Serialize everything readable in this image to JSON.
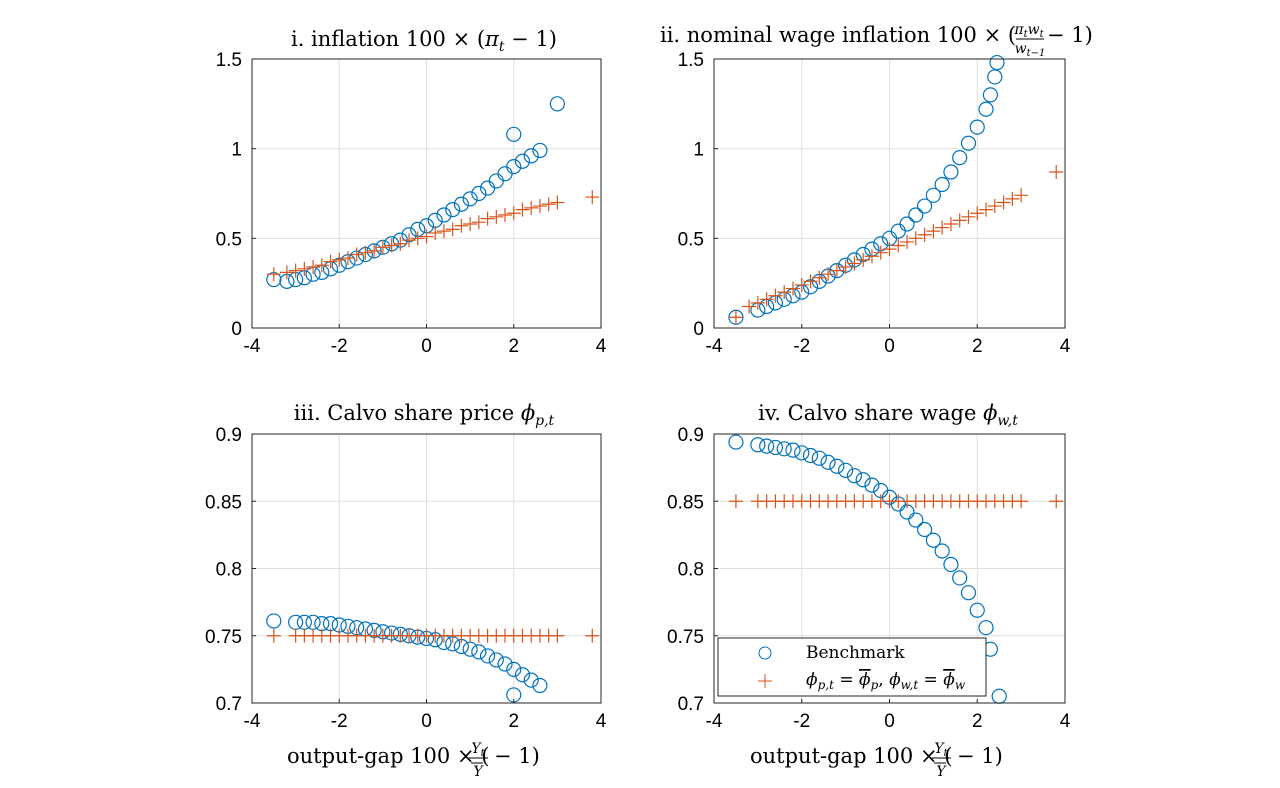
{
  "chart_data": [
    {
      "type": "scatter",
      "title": "i. inflation 100 × (π_t − 1)",
      "xlabel": "",
      "ylabel": "",
      "xlim": [
        -4,
        4
      ],
      "ylim": [
        0,
        1.5
      ],
      "xticks": [
        "-4",
        "-2",
        "0",
        "2",
        "4"
      ],
      "yticks": [
        "0",
        "0.5",
        "1",
        "1.5"
      ],
      "grid": true,
      "series": [
        {
          "name": "Benchmark",
          "marker": "circle",
          "color": "#0072BD",
          "x": [
            -3.5,
            -3.2,
            -3.0,
            -2.8,
            -2.6,
            -2.4,
            -2.2,
            -2.0,
            -1.8,
            -1.6,
            -1.4,
            -1.2,
            -1.0,
            -0.8,
            -0.6,
            -0.4,
            -0.2,
            0.0,
            0.2,
            0.4,
            0.6,
            0.8,
            1.0,
            1.2,
            1.4,
            1.6,
            1.8,
            2.0,
            2.2,
            2.4,
            2.6,
            2.0,
            3.0
          ],
          "y": [
            0.27,
            0.26,
            0.27,
            0.28,
            0.3,
            0.31,
            0.33,
            0.35,
            0.37,
            0.39,
            0.41,
            0.43,
            0.45,
            0.47,
            0.49,
            0.52,
            0.55,
            0.57,
            0.6,
            0.63,
            0.66,
            0.69,
            0.72,
            0.75,
            0.78,
            0.82,
            0.86,
            0.9,
            0.93,
            0.96,
            0.99,
            1.08,
            1.25
          ]
        },
        {
          "name": "φp,t = φ̄p, φw,t = φ̄w",
          "marker": "plus",
          "color": "#D95319",
          "x": [
            -3.5,
            -3.2,
            -3.0,
            -2.8,
            -2.6,
            -2.4,
            -2.2,
            -2.0,
            -1.8,
            -1.6,
            -1.4,
            -1.2,
            -1.0,
            -0.8,
            -0.6,
            -0.4,
            -0.2,
            0.0,
            0.2,
            0.4,
            0.6,
            0.8,
            1.0,
            1.2,
            1.4,
            1.6,
            1.8,
            2.0,
            2.2,
            2.4,
            2.6,
            2.8,
            3.0,
            3.8
          ],
          "y": [
            0.3,
            0.31,
            0.32,
            0.33,
            0.34,
            0.35,
            0.37,
            0.38,
            0.39,
            0.41,
            0.42,
            0.43,
            0.45,
            0.46,
            0.47,
            0.49,
            0.5,
            0.51,
            0.53,
            0.54,
            0.55,
            0.57,
            0.58,
            0.59,
            0.61,
            0.62,
            0.63,
            0.64,
            0.66,
            0.67,
            0.68,
            0.69,
            0.7,
            0.73
          ]
        }
      ]
    },
    {
      "type": "scatter",
      "title": "ii. nominal wage inflation 100 × (π_t w_t / w_{t−1} − 1)",
      "xlabel": "",
      "ylabel": "",
      "xlim": [
        -4,
        4
      ],
      "ylim": [
        0,
        1.5
      ],
      "xticks": [
        "-4",
        "-2",
        "0",
        "2",
        "4"
      ],
      "yticks": [
        "0",
        "0.5",
        "1",
        "1.5"
      ],
      "grid": true,
      "series": [
        {
          "name": "Benchmark",
          "marker": "circle",
          "color": "#0072BD",
          "x": [
            -3.5,
            -3.0,
            -2.8,
            -2.6,
            -2.4,
            -2.2,
            -2.0,
            -1.8,
            -1.6,
            -1.4,
            -1.2,
            -1.0,
            -0.8,
            -0.6,
            -0.4,
            -0.2,
            0.0,
            0.2,
            0.4,
            0.6,
            0.8,
            1.0,
            1.2,
            1.4,
            1.6,
            1.8,
            2.0,
            2.2,
            2.3,
            2.4,
            2.45
          ],
          "y": [
            0.06,
            0.1,
            0.12,
            0.14,
            0.16,
            0.18,
            0.2,
            0.23,
            0.26,
            0.29,
            0.32,
            0.35,
            0.38,
            0.41,
            0.44,
            0.47,
            0.5,
            0.54,
            0.58,
            0.63,
            0.68,
            0.74,
            0.8,
            0.87,
            0.95,
            1.03,
            1.12,
            1.22,
            1.3,
            1.4,
            1.48
          ]
        },
        {
          "name": "φp,t = φ̄p, φw,t = φ̄w",
          "marker": "plus",
          "color": "#D95319",
          "x": [
            -3.5,
            -3.2,
            -3.0,
            -2.8,
            -2.6,
            -2.4,
            -2.2,
            -2.0,
            -1.8,
            -1.6,
            -1.4,
            -1.2,
            -1.0,
            -0.8,
            -0.6,
            -0.4,
            -0.2,
            0.0,
            0.2,
            0.4,
            0.6,
            0.8,
            1.0,
            1.2,
            1.4,
            1.6,
            1.8,
            2.0,
            2.2,
            2.4,
            2.6,
            2.8,
            3.0,
            3.8
          ],
          "y": [
            0.06,
            0.12,
            0.14,
            0.16,
            0.18,
            0.2,
            0.22,
            0.24,
            0.26,
            0.28,
            0.3,
            0.32,
            0.34,
            0.36,
            0.38,
            0.4,
            0.42,
            0.44,
            0.46,
            0.48,
            0.5,
            0.52,
            0.54,
            0.56,
            0.58,
            0.6,
            0.62,
            0.64,
            0.66,
            0.68,
            0.7,
            0.72,
            0.74,
            0.87
          ]
        }
      ]
    },
    {
      "type": "scatter",
      "title": "iii. Calvo share price φ_{p,t}",
      "xlabel": "output-gap 100 × (Y_t / Ȳ − 1)",
      "ylabel": "",
      "xlim": [
        -4,
        4
      ],
      "ylim": [
        0.7,
        0.9
      ],
      "xticks": [
        "-4",
        "-2",
        "0",
        "2",
        "4"
      ],
      "yticks": [
        "0.7",
        "0.75",
        "0.8",
        "0.85",
        "0.9"
      ],
      "grid": true,
      "series": [
        {
          "name": "Benchmark",
          "marker": "circle",
          "color": "#0072BD",
          "x": [
            -3.5,
            -3.0,
            -2.8,
            -2.6,
            -2.4,
            -2.2,
            -2.0,
            -1.8,
            -1.6,
            -1.4,
            -1.2,
            -1.0,
            -0.8,
            -0.6,
            -0.4,
            -0.2,
            0.0,
            0.2,
            0.4,
            0.6,
            0.8,
            1.0,
            1.2,
            1.4,
            1.6,
            1.8,
            2.0,
            2.2,
            2.4,
            2.6,
            2.0
          ],
          "y": [
            0.761,
            0.76,
            0.76,
            0.76,
            0.759,
            0.759,
            0.758,
            0.757,
            0.756,
            0.755,
            0.754,
            0.753,
            0.752,
            0.751,
            0.75,
            0.749,
            0.748,
            0.747,
            0.745,
            0.744,
            0.742,
            0.74,
            0.738,
            0.735,
            0.732,
            0.729,
            0.725,
            0.721,
            0.717,
            0.713,
            0.706
          ]
        },
        {
          "name": "φp,t = φ̄p, φw,t = φ̄w",
          "marker": "plus",
          "color": "#D95319",
          "x": [
            -3.5,
            -3.0,
            -2.8,
            -2.6,
            -2.4,
            -2.2,
            -2.0,
            -1.8,
            -1.6,
            -1.4,
            -1.2,
            -1.0,
            -0.8,
            -0.6,
            -0.4,
            -0.2,
            0.0,
            0.2,
            0.4,
            0.6,
            0.8,
            1.0,
            1.2,
            1.4,
            1.6,
            1.8,
            2.0,
            2.2,
            2.4,
            2.6,
            2.8,
            3.0,
            3.8
          ],
          "y": [
            0.75,
            0.75,
            0.75,
            0.75,
            0.75,
            0.75,
            0.75,
            0.75,
            0.75,
            0.75,
            0.75,
            0.75,
            0.75,
            0.75,
            0.75,
            0.75,
            0.75,
            0.75,
            0.75,
            0.75,
            0.75,
            0.75,
            0.75,
            0.75,
            0.75,
            0.75,
            0.75,
            0.75,
            0.75,
            0.75,
            0.75,
            0.75,
            0.75
          ]
        }
      ]
    },
    {
      "type": "scatter",
      "title": "iv. Calvo share wage φ_{w,t}",
      "xlabel": "output-gap 100 × (Y_t / Ȳ − 1)",
      "ylabel": "",
      "xlim": [
        -4,
        4
      ],
      "ylim": [
        0.7,
        0.9
      ],
      "xticks": [
        "-4",
        "-2",
        "0",
        "2",
        "4"
      ],
      "yticks": [
        "0.7",
        "0.75",
        "0.8",
        "0.85",
        "0.9"
      ],
      "grid": true,
      "legend": {
        "position": "bottom-left",
        "entries": [
          "Benchmark",
          "φp,t = φ̄p, φw,t = φ̄w"
        ]
      },
      "series": [
        {
          "name": "Benchmark",
          "marker": "circle",
          "color": "#0072BD",
          "x": [
            -3.5,
            -3.0,
            -2.8,
            -2.6,
            -2.4,
            -2.2,
            -2.0,
            -1.8,
            -1.6,
            -1.4,
            -1.2,
            -1.0,
            -0.8,
            -0.6,
            -0.4,
            -0.2,
            0.0,
            0.2,
            0.4,
            0.6,
            0.8,
            1.0,
            1.2,
            1.4,
            1.6,
            1.8,
            2.0,
            2.2,
            2.3,
            2.5
          ],
          "y": [
            0.894,
            0.892,
            0.891,
            0.89,
            0.889,
            0.888,
            0.886,
            0.884,
            0.882,
            0.879,
            0.876,
            0.873,
            0.869,
            0.866,
            0.862,
            0.858,
            0.853,
            0.848,
            0.842,
            0.836,
            0.829,
            0.821,
            0.813,
            0.803,
            0.793,
            0.782,
            0.769,
            0.756,
            0.74,
            0.705
          ]
        },
        {
          "name": "φp,t = φ̄p, φw,t = φ̄w",
          "marker": "plus",
          "color": "#D95319",
          "x": [
            -3.5,
            -3.0,
            -2.8,
            -2.6,
            -2.4,
            -2.2,
            -2.0,
            -1.8,
            -1.6,
            -1.4,
            -1.2,
            -1.0,
            -0.8,
            -0.6,
            -0.4,
            -0.2,
            0.0,
            0.2,
            0.4,
            0.6,
            0.8,
            1.0,
            1.2,
            1.4,
            1.6,
            1.8,
            2.0,
            2.2,
            2.4,
            2.6,
            2.8,
            3.0,
            3.8
          ],
          "y": [
            0.85,
            0.85,
            0.85,
            0.85,
            0.85,
            0.85,
            0.85,
            0.85,
            0.85,
            0.85,
            0.85,
            0.85,
            0.85,
            0.85,
            0.85,
            0.85,
            0.85,
            0.85,
            0.85,
            0.85,
            0.85,
            0.85,
            0.85,
            0.85,
            0.85,
            0.85,
            0.85,
            0.85,
            0.85,
            0.85,
            0.85,
            0.85,
            0.85
          ]
        }
      ]
    }
  ]
}
